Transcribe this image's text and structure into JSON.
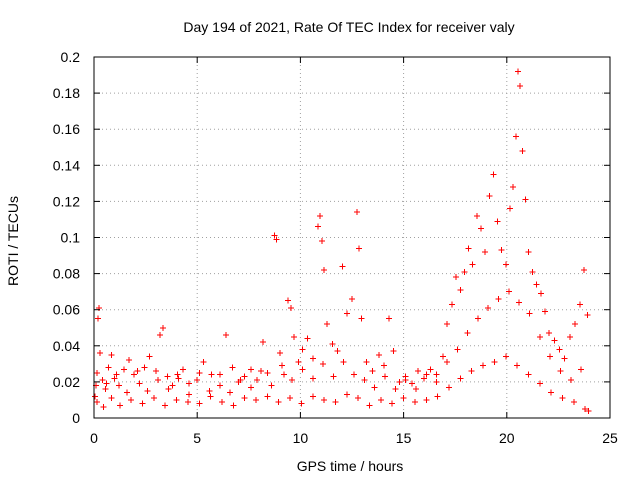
{
  "chart_data": {
    "type": "scatter",
    "title": "Day 194 of 2021, Rate Of TEC Index for receiver valy",
    "xlabel": "GPS time / hours",
    "ylabel": "ROTI / TECUs",
    "xlim": [
      0,
      25
    ],
    "ylim": [
      0,
      0.2
    ],
    "xticks": [
      0,
      5,
      10,
      15,
      20,
      25
    ],
    "yticks": [
      0,
      0.02,
      0.04,
      0.06,
      0.08,
      0.1,
      0.12,
      0.14,
      0.16,
      0.18,
      0.2
    ],
    "xtick_labels": [
      "0",
      "5",
      "10",
      "15",
      "20",
      "25"
    ],
    "ytick_labels": [
      "0",
      "0.02",
      "0.04",
      "0.06",
      "0.08",
      "0.1",
      "0.12",
      "0.14",
      "0.16",
      "0.18",
      "0.2"
    ],
    "grid": true,
    "marker": "+",
    "color": "#ff0000",
    "series": [
      {
        "name": "ROTI",
        "points": [
          [
            0.05,
            0.012
          ],
          [
            0.1,
            0.018
          ],
          [
            0.15,
            0.025
          ],
          [
            0.2,
            0.055
          ],
          [
            0.25,
            0.061
          ],
          [
            0.3,
            0.036
          ],
          [
            0.4,
            0.021
          ],
          [
            0.55,
            0.016
          ],
          [
            0.7,
            0.028
          ],
          [
            0.85,
            0.035
          ],
          [
            1.0,
            0.022
          ],
          [
            1.2,
            0.018
          ],
          [
            1.45,
            0.027
          ],
          [
            1.7,
            0.032
          ],
          [
            1.95,
            0.024
          ],
          [
            2.2,
            0.019
          ],
          [
            2.45,
            0.028
          ],
          [
            2.7,
            0.034
          ],
          [
            3.0,
            0.026
          ],
          [
            3.2,
            0.046
          ],
          [
            3.35,
            0.05
          ],
          [
            3.55,
            0.023
          ],
          [
            3.8,
            0.018
          ],
          [
            4.05,
            0.024
          ],
          [
            4.3,
            0.027
          ],
          [
            4.6,
            0.019
          ],
          [
            5.0,
            0.021
          ],
          [
            5.3,
            0.031
          ],
          [
            5.7,
            0.024
          ],
          [
            6.1,
            0.018
          ],
          [
            6.4,
            0.046
          ],
          [
            6.7,
            0.028
          ],
          [
            7.0,
            0.02
          ],
          [
            7.3,
            0.023
          ],
          [
            7.6,
            0.027
          ],
          [
            7.9,
            0.021
          ],
          [
            8.2,
            0.042
          ],
          [
            8.4,
            0.025
          ],
          [
            8.75,
            0.101
          ],
          [
            8.85,
            0.099
          ],
          [
            9.0,
            0.036
          ],
          [
            9.2,
            0.024
          ],
          [
            9.4,
            0.065
          ],
          [
            9.55,
            0.061
          ],
          [
            9.7,
            0.045
          ],
          [
            9.9,
            0.031
          ],
          [
            10.1,
            0.038
          ],
          [
            10.35,
            0.044
          ],
          [
            10.6,
            0.033
          ],
          [
            10.85,
            0.106
          ],
          [
            10.95,
            0.112
          ],
          [
            11.05,
            0.098
          ],
          [
            11.15,
            0.082
          ],
          [
            11.3,
            0.052
          ],
          [
            11.55,
            0.041
          ],
          [
            11.8,
            0.037
          ],
          [
            12.05,
            0.084
          ],
          [
            12.25,
            0.058
          ],
          [
            12.5,
            0.066
          ],
          [
            12.75,
            0.114
          ],
          [
            12.85,
            0.094
          ],
          [
            12.95,
            0.055
          ],
          [
            13.2,
            0.031
          ],
          [
            13.5,
            0.026
          ],
          [
            13.8,
            0.035
          ],
          [
            14.05,
            0.029
          ],
          [
            14.3,
            0.055
          ],
          [
            14.5,
            0.037
          ],
          [
            14.8,
            0.02
          ],
          [
            15.1,
            0.023
          ],
          [
            15.4,
            0.019
          ],
          [
            15.7,
            0.026
          ],
          [
            16.0,
            0.022
          ],
          [
            16.3,
            0.027
          ],
          [
            16.6,
            0.024
          ],
          [
            16.9,
            0.034
          ],
          [
            17.1,
            0.052
          ],
          [
            17.35,
            0.063
          ],
          [
            17.55,
            0.078
          ],
          [
            17.75,
            0.071
          ],
          [
            17.95,
            0.081
          ],
          [
            18.15,
            0.094
          ],
          [
            18.35,
            0.085
          ],
          [
            18.55,
            0.112
          ],
          [
            18.75,
            0.105
          ],
          [
            18.95,
            0.092
          ],
          [
            19.15,
            0.123
          ],
          [
            19.35,
            0.135
          ],
          [
            19.55,
            0.109
          ],
          [
            19.75,
            0.093
          ],
          [
            19.95,
            0.085
          ],
          [
            20.15,
            0.116
          ],
          [
            20.3,
            0.128
          ],
          [
            20.45,
            0.156
          ],
          [
            20.55,
            0.192
          ],
          [
            20.65,
            0.184
          ],
          [
            20.75,
            0.148
          ],
          [
            20.9,
            0.121
          ],
          [
            21.05,
            0.092
          ],
          [
            21.25,
            0.081
          ],
          [
            21.45,
            0.074
          ],
          [
            21.65,
            0.069
          ],
          [
            21.85,
            0.059
          ],
          [
            22.05,
            0.047
          ],
          [
            22.3,
            0.043
          ],
          [
            22.55,
            0.038
          ],
          [
            22.8,
            0.033
          ],
          [
            23.05,
            0.045
          ],
          [
            23.3,
            0.052
          ],
          [
            23.55,
            0.063
          ],
          [
            23.75,
            0.082
          ],
          [
            23.9,
            0.057
          ],
          [
            0.15,
            0.009
          ],
          [
            0.45,
            0.006
          ],
          [
            0.85,
            0.011
          ],
          [
            1.25,
            0.007
          ],
          [
            1.8,
            0.01
          ],
          [
            2.35,
            0.008
          ],
          [
            2.9,
            0.011
          ],
          [
            3.45,
            0.007
          ],
          [
            4.0,
            0.01
          ],
          [
            4.55,
            0.009
          ],
          [
            5.1,
            0.008
          ],
          [
            5.65,
            0.012
          ],
          [
            6.2,
            0.009
          ],
          [
            6.75,
            0.007
          ],
          [
            7.3,
            0.011
          ],
          [
            7.85,
            0.01
          ],
          [
            8.4,
            0.012
          ],
          [
            8.95,
            0.009
          ],
          [
            9.5,
            0.011
          ],
          [
            10.05,
            0.008
          ],
          [
            10.6,
            0.012
          ],
          [
            11.15,
            0.01
          ],
          [
            11.7,
            0.009
          ],
          [
            12.25,
            0.013
          ],
          [
            12.8,
            0.011
          ],
          [
            13.35,
            0.007
          ],
          [
            13.9,
            0.01
          ],
          [
            14.45,
            0.008
          ],
          [
            15.0,
            0.011
          ],
          [
            15.55,
            0.009
          ],
          [
            16.1,
            0.01
          ],
          [
            16.65,
            0.012
          ],
          [
            17.2,
            0.017
          ],
          [
            17.75,
            0.022
          ],
          [
            18.3,
            0.026
          ],
          [
            18.85,
            0.029
          ],
          [
            19.4,
            0.031
          ],
          [
            19.95,
            0.034
          ],
          [
            20.5,
            0.029
          ],
          [
            21.05,
            0.024
          ],
          [
            21.6,
            0.019
          ],
          [
            22.15,
            0.014
          ],
          [
            22.7,
            0.011
          ],
          [
            23.25,
            0.009
          ],
          [
            23.8,
            0.005
          ],
          [
            23.95,
            0.004
          ],
          [
            0.6,
            0.019
          ],
          [
            1.1,
            0.024
          ],
          [
            1.6,
            0.014
          ],
          [
            2.1,
            0.026
          ],
          [
            2.6,
            0.015
          ],
          [
            3.1,
            0.021
          ],
          [
            3.6,
            0.016
          ],
          [
            4.1,
            0.022
          ],
          [
            4.6,
            0.013
          ],
          [
            5.1,
            0.025
          ],
          [
            5.6,
            0.015
          ],
          [
            6.1,
            0.024
          ],
          [
            6.6,
            0.014
          ],
          [
            7.1,
            0.021
          ],
          [
            7.6,
            0.017
          ],
          [
            8.1,
            0.026
          ],
          [
            8.6,
            0.018
          ],
          [
            9.1,
            0.029
          ],
          [
            9.6,
            0.021
          ],
          [
            10.1,
            0.027
          ],
          [
            10.6,
            0.022
          ],
          [
            11.1,
            0.03
          ],
          [
            11.6,
            0.023
          ],
          [
            12.1,
            0.031
          ],
          [
            12.6,
            0.024
          ],
          [
            13.1,
            0.021
          ],
          [
            13.6,
            0.017
          ],
          [
            14.1,
            0.023
          ],
          [
            14.6,
            0.016
          ],
          [
            15.1,
            0.021
          ],
          [
            15.6,
            0.016
          ],
          [
            16.1,
            0.024
          ],
          [
            16.6,
            0.02
          ],
          [
            17.1,
            0.031
          ],
          [
            17.6,
            0.038
          ],
          [
            18.1,
            0.047
          ],
          [
            18.6,
            0.055
          ],
          [
            19.1,
            0.061
          ],
          [
            19.6,
            0.066
          ],
          [
            20.1,
            0.07
          ],
          [
            20.6,
            0.064
          ],
          [
            21.1,
            0.058
          ],
          [
            21.6,
            0.045
          ],
          [
            22.1,
            0.034
          ],
          [
            22.6,
            0.026
          ],
          [
            23.1,
            0.021
          ],
          [
            23.6,
            0.027
          ]
        ]
      }
    ]
  }
}
